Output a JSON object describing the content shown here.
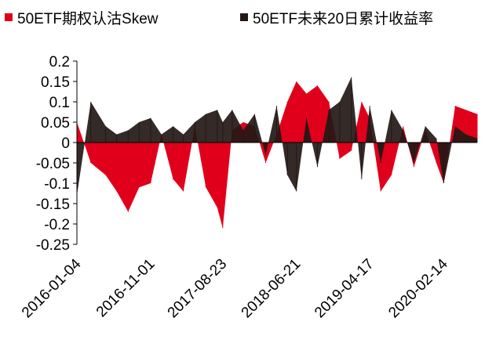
{
  "chart_data": {
    "type": "area",
    "title": "",
    "xlabel": "",
    "ylabel": "",
    "ylim": [
      -0.25,
      0.2
    ],
    "yticks": [
      0.2,
      0.15,
      0.1,
      0.05,
      0,
      -0.05,
      -0.1,
      -0.15,
      -0.2,
      -0.25
    ],
    "ytick_labels": [
      "0.2",
      "0.15",
      "0.1",
      "0.05",
      "0",
      "-0.05",
      "-0.1",
      "-0.15",
      "-0.2",
      "-0.25"
    ],
    "x_tick_labels": [
      "2016-01-04",
      "2016-11-01",
      "2017-08-23",
      "2018-06-21",
      "2019-04-17",
      "2020-02-14"
    ],
    "x_range": [
      "2016-01-04",
      "2020-06-30"
    ],
    "grid": false,
    "legend_position": "top",
    "series": [
      {
        "name": "50ETF期权认沽Skew",
        "color": "#e0001b",
        "x": [
          "2016-01-04",
          "2016-03-01",
          "2016-05-01",
          "2016-06-15",
          "2016-08-01",
          "2016-09-15",
          "2016-11-01",
          "2016-12-15",
          "2017-02-01",
          "2017-03-15",
          "2017-05-01",
          "2017-06-15",
          "2017-08-01",
          "2017-08-23",
          "2017-10-01",
          "2017-11-15",
          "2018-01-01",
          "2018-02-15",
          "2018-04-01",
          "2018-05-15",
          "2018-06-21",
          "2018-08-01",
          "2018-09-15",
          "2018-11-01",
          "2018-12-15",
          "2019-02-01",
          "2019-03-15",
          "2019-04-17",
          "2019-06-01",
          "2019-07-15",
          "2019-09-01",
          "2019-10-15",
          "2019-12-01",
          "2020-01-15",
          "2020-02-14",
          "2020-04-01",
          "2020-05-15",
          "2020-06-30"
        ],
        "values": [
          0.05,
          -0.05,
          -0.08,
          -0.12,
          -0.17,
          -0.11,
          -0.1,
          0.02,
          -0.09,
          -0.12,
          0.04,
          -0.11,
          -0.16,
          -0.21,
          0.03,
          0.05,
          0.04,
          -0.05,
          0.02,
          0.1,
          0.15,
          0.12,
          0.14,
          0.1,
          -0.04,
          -0.02,
          0.1,
          0.06,
          -0.12,
          -0.08,
          0.04,
          -0.06,
          0.03,
          -0.05,
          -0.1,
          0.09,
          0.08,
          0.07
        ]
      },
      {
        "name": "50ETF未来20日累计收益率",
        "color": "#231815",
        "x": [
          "2016-01-04",
          "2016-03-01",
          "2016-05-01",
          "2016-06-15",
          "2016-08-01",
          "2016-09-15",
          "2016-11-01",
          "2016-12-15",
          "2017-02-01",
          "2017-03-15",
          "2017-05-01",
          "2017-06-15",
          "2017-08-01",
          "2017-08-23",
          "2017-10-01",
          "2017-11-15",
          "2018-01-01",
          "2018-02-15",
          "2018-04-01",
          "2018-05-15",
          "2018-06-21",
          "2018-08-01",
          "2018-09-15",
          "2018-11-01",
          "2018-12-15",
          "2019-02-01",
          "2019-03-15",
          "2019-04-17",
          "2019-06-01",
          "2019-07-15",
          "2019-09-01",
          "2019-10-15",
          "2019-12-01",
          "2020-01-15",
          "2020-02-14",
          "2020-04-01",
          "2020-05-15",
          "2020-06-30"
        ],
        "values": [
          -0.13,
          0.1,
          0.04,
          0.02,
          0.03,
          0.05,
          0.06,
          0.02,
          0.04,
          0.02,
          0.05,
          0.07,
          0.08,
          0.05,
          0.08,
          0.03,
          0.07,
          -0.03,
          0.09,
          -0.08,
          -0.12,
          0.06,
          -0.06,
          0.08,
          0.1,
          0.16,
          -0.09,
          0.09,
          -0.05,
          0.08,
          0.03,
          -0.05,
          0.04,
          0.01,
          -0.1,
          0.04,
          0.02,
          0.01
        ]
      }
    ]
  }
}
